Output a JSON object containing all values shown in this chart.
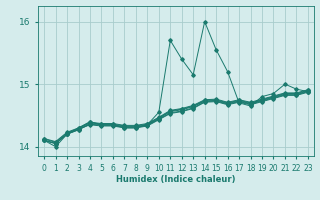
{
  "title": "",
  "xlabel": "Humidex (Indice chaleur)",
  "ylabel": "",
  "background_color": "#d5ecec",
  "grid_color": "#a8cccc",
  "line_color": "#1a7a6e",
  "xlim": [
    -0.5,
    23.5
  ],
  "ylim": [
    13.85,
    16.25
  ],
  "yticks": [
    14,
    15,
    16
  ],
  "xticks": [
    0,
    1,
    2,
    3,
    4,
    5,
    6,
    7,
    8,
    9,
    10,
    11,
    12,
    13,
    14,
    15,
    16,
    17,
    18,
    19,
    20,
    21,
    22,
    23
  ],
  "series": [
    [
      14.1,
      14.0,
      14.2,
      14.3,
      14.4,
      14.35,
      14.35,
      14.3,
      14.3,
      14.35,
      14.55,
      15.7,
      15.4,
      15.15,
      16.0,
      15.55,
      15.2,
      14.7,
      14.65,
      14.8,
      14.85,
      15.0,
      14.92,
      14.88
    ],
    [
      14.1,
      14.05,
      14.2,
      14.28,
      14.35,
      14.33,
      14.33,
      14.3,
      14.3,
      14.33,
      14.43,
      14.53,
      14.56,
      14.61,
      14.71,
      14.72,
      14.67,
      14.71,
      14.67,
      14.72,
      14.77,
      14.82,
      14.82,
      14.87
    ],
    [
      14.1,
      14.05,
      14.2,
      14.27,
      14.36,
      14.34,
      14.34,
      14.31,
      14.31,
      14.34,
      14.44,
      14.54,
      14.57,
      14.62,
      14.72,
      14.73,
      14.68,
      14.72,
      14.68,
      14.73,
      14.78,
      14.83,
      14.83,
      14.88
    ],
    [
      14.1,
      14.05,
      14.2,
      14.27,
      14.37,
      14.35,
      14.35,
      14.32,
      14.32,
      14.35,
      14.45,
      14.56,
      14.59,
      14.64,
      14.73,
      14.74,
      14.69,
      14.73,
      14.69,
      14.74,
      14.79,
      14.84,
      14.84,
      14.89
    ],
    [
      14.12,
      14.07,
      14.22,
      14.29,
      14.38,
      14.36,
      14.36,
      14.33,
      14.33,
      14.36,
      14.46,
      14.57,
      14.6,
      14.65,
      14.74,
      14.75,
      14.7,
      14.74,
      14.7,
      14.75,
      14.8,
      14.85,
      14.85,
      14.9
    ],
    [
      14.13,
      14.08,
      14.23,
      14.3,
      14.39,
      14.37,
      14.37,
      14.34,
      14.34,
      14.37,
      14.47,
      14.58,
      14.61,
      14.66,
      14.75,
      14.76,
      14.71,
      14.75,
      14.71,
      14.76,
      14.81,
      14.86,
      14.86,
      14.91
    ]
  ]
}
